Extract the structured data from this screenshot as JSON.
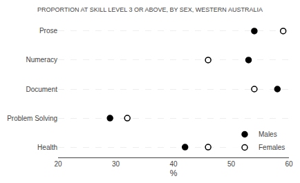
{
  "chart_data": {
    "type": "scatter",
    "title": "PROPORTION AT SKILL LEVEL 3 OR ABOVE, BY SEX, WESTERN AUSTRALIA",
    "orientation": "horizontal",
    "categories": [
      "Prose",
      "Numeracy",
      "Document",
      "Problem Solving",
      "Health"
    ],
    "series": [
      {
        "name": "Males",
        "color": "#000000",
        "marker": "circle",
        "values": [
          54,
          53,
          58,
          29,
          42
        ]
      },
      {
        "name": "Females",
        "color": "#000000",
        "marker": "circle-open",
        "values": [
          59,
          46,
          54,
          32,
          46
        ]
      }
    ],
    "xlabel": "%",
    "xlim": [
      20,
      60
    ],
    "xticks": [
      20,
      30,
      40,
      50,
      60
    ],
    "grid": "y",
    "legend": "lower right"
  }
}
